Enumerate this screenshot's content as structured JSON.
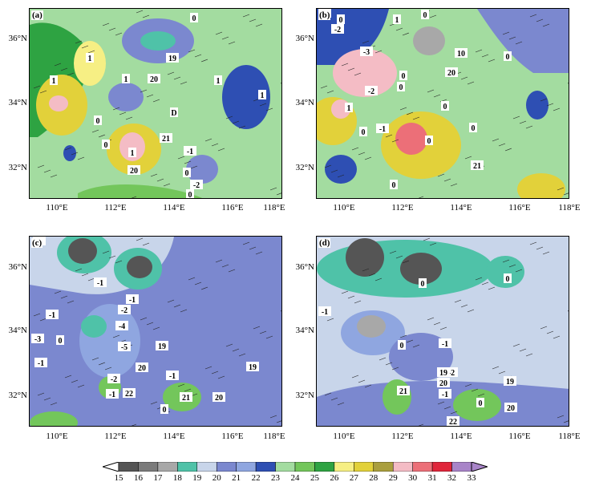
{
  "panels": [
    {
      "label": "(a)",
      "contour_labels": [
        "0",
        "1",
        "1",
        "19",
        "20",
        "1",
        "1",
        "1",
        "0",
        "D",
        "0",
        "21",
        "1",
        "20",
        "-1",
        "0",
        "-2",
        "0"
      ]
    },
    {
      "label": "(b)",
      "contour_labels": [
        "-1",
        "0",
        "-2",
        "1",
        "0",
        "10",
        "0",
        "-3",
        "20",
        "0",
        "-2",
        "0",
        "0",
        "0",
        "1",
        "0",
        "-1",
        "0",
        "21",
        "0"
      ]
    },
    {
      "label": "(c)",
      "contour_labels": [
        "-1",
        "-1",
        "-1",
        "-2",
        "-1",
        "-4",
        "-3",
        "0",
        "-1",
        "-5",
        "19",
        "-1",
        "20",
        "-1",
        "22",
        "-2",
        "21",
        "20",
        "0",
        "19"
      ]
    },
    {
      "label": "(d)",
      "contour_labels": [
        "0",
        "0",
        "-1",
        "0",
        "-1",
        "-2",
        "19",
        "20",
        "19",
        "21",
        "-1",
        "20",
        "0",
        "22"
      ]
    }
  ],
  "axes": {
    "lat_ticks": [
      "36°N",
      "34°N",
      "32°N"
    ],
    "lon_ticks": [
      "110°E",
      "112°E",
      "114°E",
      "116°E",
      "118°E"
    ]
  },
  "colorbar": {
    "levels": [
      "15",
      "16",
      "17",
      "18",
      "19",
      "20",
      "21",
      "22",
      "23",
      "24",
      "25",
      "26",
      "27",
      "28",
      "29",
      "30",
      "31",
      "32",
      "33"
    ],
    "colors": [
      "#555555",
      "#7b7b7b",
      "#a8a8a8",
      "#4fc2a8",
      "#c8d5ea",
      "#7b88cf",
      "#8fa6e0",
      "#2e4fb3",
      "#a3dca0",
      "#73c65b",
      "#2ea342",
      "#f6ef84",
      "#e2d13a",
      "#aa9f3e",
      "#f4bcc5",
      "#ec6f78",
      "#e0253a",
      "#a884c8"
    ]
  }
}
